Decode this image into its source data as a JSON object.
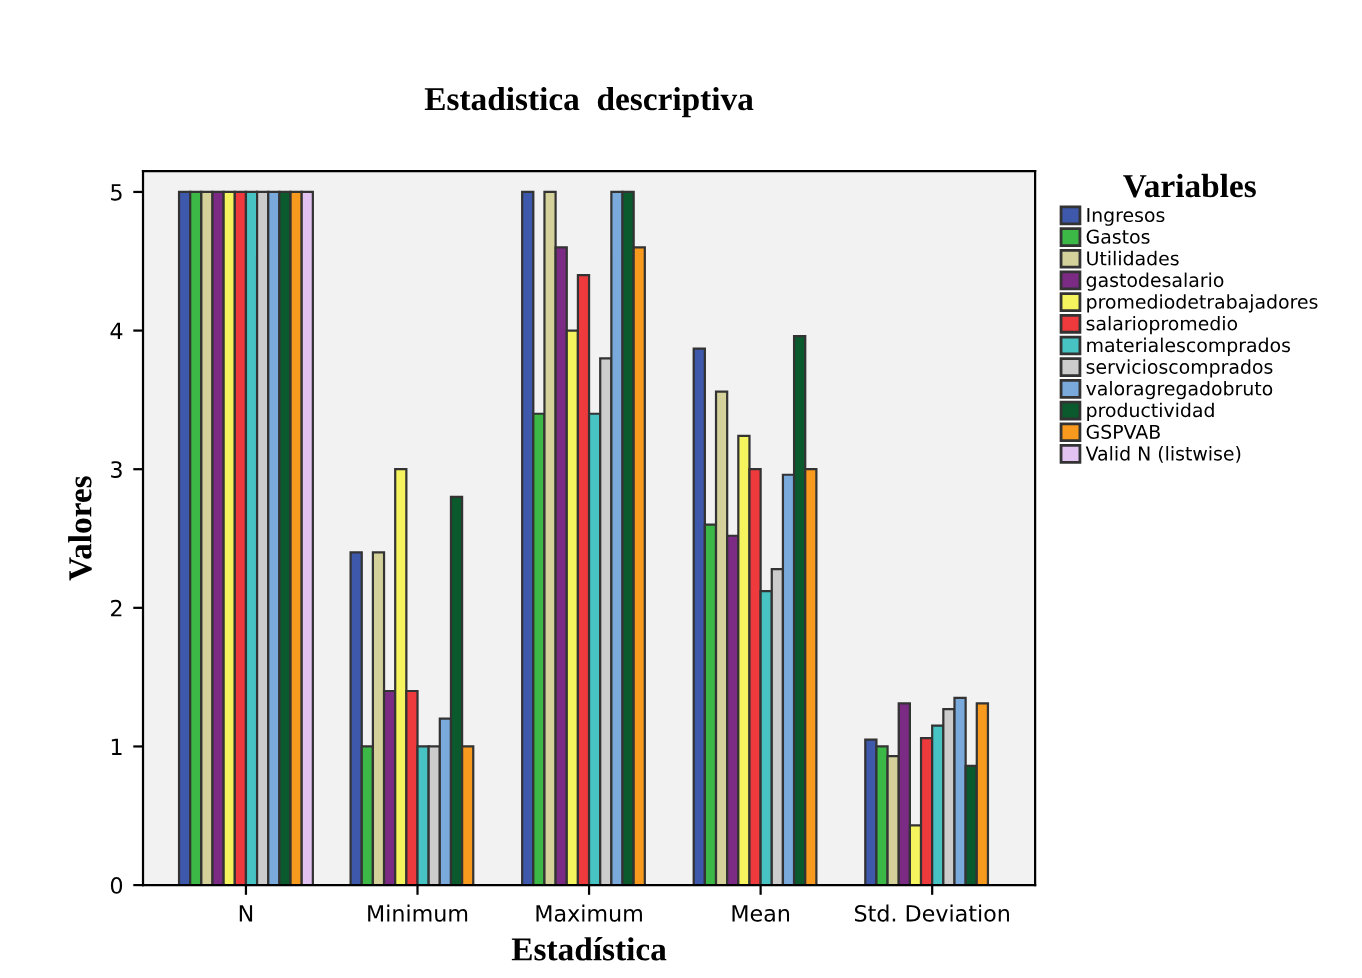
{
  "chart_data": {
    "type": "bar",
    "title": "Estadistica  descriptiva",
    "xlabel": "Estadística",
    "ylabel": "Valores",
    "legend_title": "Variables",
    "categories": [
      "N",
      "Minimum",
      "Maximum",
      "Mean",
      "Std. Deviation"
    ],
    "ylim": [
      0,
      5.15
    ],
    "yticks": [
      0,
      1,
      2,
      3,
      4,
      5
    ],
    "grid": false,
    "legend": "right",
    "series": [
      {
        "name": "Ingresos",
        "color": "#3e58ac",
        "values": [
          5,
          2.4,
          5,
          3.87,
          1.05
        ]
      },
      {
        "name": "Gastos",
        "color": "#3cb846",
        "values": [
          5,
          1,
          3.4,
          2.6,
          1.0
        ]
      },
      {
        "name": "Utilidades",
        "color": "#d4d29a",
        "values": [
          5,
          2.4,
          5,
          3.56,
          0.93
        ]
      },
      {
        "name": "gastodesalario",
        "color": "#7b2b84",
        "values": [
          5,
          1.4,
          4.6,
          2.52,
          1.31
        ]
      },
      {
        "name": "promediodetrabajadores",
        "color": "#f6f45e",
        "values": [
          5,
          3,
          4,
          3.24,
          0.43
        ]
      },
      {
        "name": "salariopromedio",
        "color": "#ee3a3d",
        "values": [
          5,
          1.4,
          4.4,
          3.0,
          1.06
        ]
      },
      {
        "name": "materialescomprados",
        "color": "#48c3c3",
        "values": [
          5,
          1,
          3.4,
          2.12,
          1.15
        ]
      },
      {
        "name": "servicioscomprados",
        "color": "#cccccc",
        "values": [
          5,
          1,
          3.8,
          2.28,
          1.27
        ]
      },
      {
        "name": "valoragregadobruto",
        "color": "#7aa9dc",
        "values": [
          5,
          1.2,
          5,
          2.96,
          1.35
        ]
      },
      {
        "name": "productividad",
        "color": "#0b5a2e",
        "values": [
          5,
          2.8,
          5,
          3.96,
          0.86
        ]
      },
      {
        "name": "GSPVAB",
        "color": "#f79a1e",
        "values": [
          5,
          1,
          4.6,
          3.0,
          1.31
        ]
      },
      {
        "name": "Valid N (listwise)",
        "color": "#e2c2f0",
        "values": [
          5,
          null,
          null,
          null,
          null
        ]
      }
    ]
  }
}
